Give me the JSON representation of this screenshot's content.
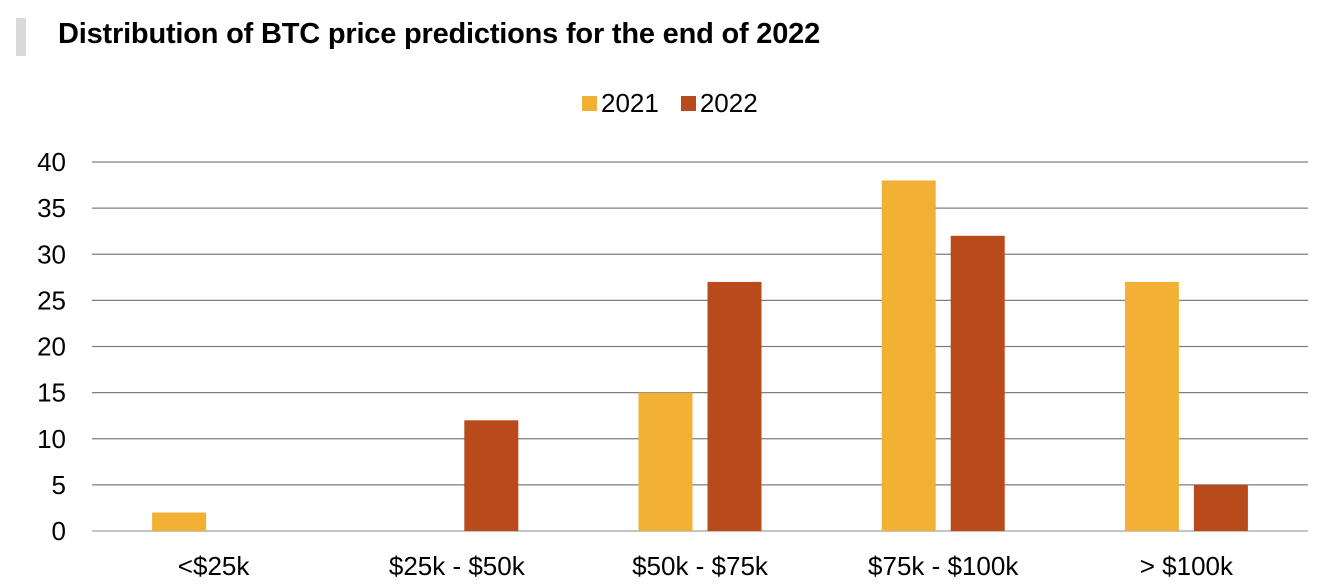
{
  "chart_data": {
    "type": "bar",
    "title": "Distribution of BTC price predictions for the end of 2022",
    "categories": [
      "<$25k",
      "$25k - $50k",
      "$50k - $75k",
      "$75k - $100k",
      "> $100k"
    ],
    "series": [
      {
        "name": "2021",
        "color": "#F2B134",
        "values": [
          2,
          0,
          15,
          38,
          27
        ]
      },
      {
        "name": "2022",
        "color": "#B84A1B",
        "values": [
          0,
          12,
          27,
          32,
          5
        ]
      }
    ],
    "ylim": [
      0,
      40
    ],
    "yticks": [
      "0",
      "5",
      "10",
      "15",
      "20",
      "25",
      "30",
      "35",
      "40"
    ],
    "grid": true,
    "legend_position": "top-center",
    "xlabel": "",
    "ylabel": ""
  }
}
